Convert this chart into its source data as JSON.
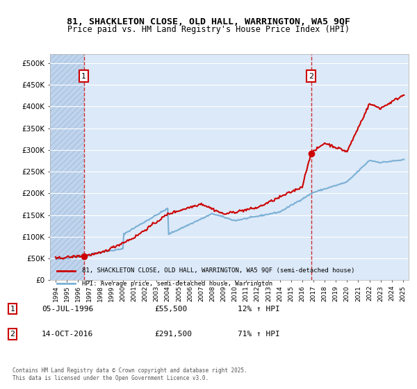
{
  "title1": "81, SHACKLETON CLOSE, OLD HALL, WARRINGTON, WA5 9QF",
  "title2": "Price paid vs. HM Land Registry's House Price Index (HPI)",
  "legend1": "81, SHACKLETON CLOSE, OLD HALL, WARRINGTON, WA5 9QF (semi-detached house)",
  "legend2": "HPI: Average price, semi-detached house, Warrington",
  "footer": "Contains HM Land Registry data © Crown copyright and database right 2025.\nThis data is licensed under the Open Government Licence v3.0.",
  "sale1_label": "1",
  "sale1_date": "05-JUL-1996",
  "sale1_price": "£55,500",
  "sale1_hpi": "12% ↑ HPI",
  "sale1_year": 1996.51,
  "sale1_value": 55500,
  "sale2_label": "2",
  "sale2_date": "14-OCT-2016",
  "sale2_price": "£291,500",
  "sale2_hpi": "71% ↑ HPI",
  "sale2_year": 2016.79,
  "sale2_value": 291500,
  "xlim": [
    1993.5,
    2025.5
  ],
  "ylim": [
    0,
    520000
  ],
  "yticks": [
    0,
    50000,
    100000,
    150000,
    200000,
    250000,
    300000,
    350000,
    400000,
    450000,
    500000
  ],
  "ytick_labels": [
    "£0",
    "£50K",
    "£100K",
    "£150K",
    "£200K",
    "£250K",
    "£300K",
    "£350K",
    "£400K",
    "£450K",
    "£500K"
  ],
  "bg_color": "#dce9f8",
  "hatch_color": "#c0d4ee",
  "red_color": "#cc0000",
  "blue_color": "#7ab0d4",
  "grid_color": "#ffffff",
  "sale_marker_color": "#cc0000"
}
